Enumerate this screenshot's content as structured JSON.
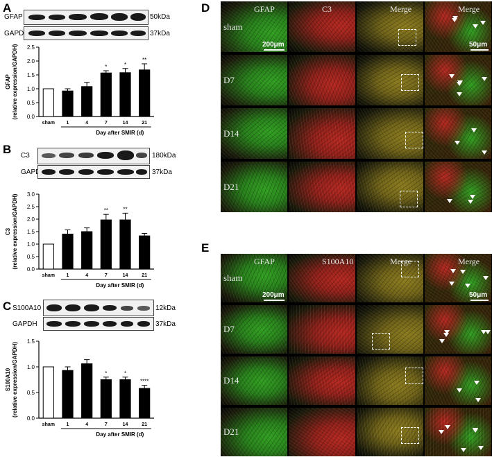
{
  "panels": {
    "A": "A",
    "B": "B",
    "C": "C",
    "D": "D",
    "E": "E"
  },
  "blots": {
    "A": {
      "protein": "GFAP",
      "protein_mw": "50kDa",
      "loading": "GAPDH",
      "loading_mw": "37kDa"
    },
    "B": {
      "protein": "C3",
      "protein_mw": "180kDa",
      "loading": "GAPDH",
      "loading_mw": "37kDa"
    },
    "C": {
      "protein": "S100A10",
      "protein_mw": "12kDa",
      "loading": "GAPDH",
      "loading_mw": "37kDa"
    }
  },
  "chart_data": [
    {
      "type": "bar",
      "panel": "A",
      "categories": [
        "sham",
        "1",
        "4",
        "7",
        "14",
        "21"
      ],
      "values": [
        1.0,
        0.92,
        1.08,
        1.57,
        1.58,
        1.68
      ],
      "errors": [
        0,
        0.08,
        0.15,
        0.08,
        0.15,
        0.22
      ],
      "significance": [
        "",
        "",
        "",
        "*",
        "*",
        "**"
      ],
      "ylabel_line1": "GFAP",
      "ylabel_line2": "(relative expression/GAPDH)",
      "xlabel": "Day after SMIR (d)",
      "ylim": [
        0,
        2.5
      ],
      "yticks": [
        "0.0",
        "0.5",
        "1.0",
        "1.5",
        "2.0",
        "2.5"
      ],
      "bar_colors": {
        "sham": "#ffffff",
        "other": "#000000"
      }
    },
    {
      "type": "bar",
      "panel": "B",
      "categories": [
        "sham",
        "1",
        "4",
        "7",
        "14",
        "21"
      ],
      "values": [
        1.0,
        1.4,
        1.5,
        1.97,
        1.97,
        1.33
      ],
      "errors": [
        0,
        0.17,
        0.15,
        0.22,
        0.27,
        0.1
      ],
      "significance": [
        "",
        "",
        "",
        "**",
        "**",
        ""
      ],
      "ylabel_line1": "C3",
      "ylabel_line2": "(relative expression/GAPDH)",
      "xlabel": "Day after SMIR (d)",
      "ylim": [
        0,
        3.0
      ],
      "yticks": [
        "0.0",
        "0.5",
        "1.0",
        "1.5",
        "2.0",
        "2.5",
        "3.0"
      ],
      "bar_colors": {
        "sham": "#ffffff",
        "other": "#000000"
      }
    },
    {
      "type": "bar",
      "panel": "C",
      "categories": [
        "sham",
        "1",
        "4",
        "7",
        "14",
        "21"
      ],
      "values": [
        1.0,
        0.93,
        1.06,
        0.75,
        0.75,
        0.58
      ],
      "errors": [
        0,
        0.07,
        0.08,
        0.05,
        0.05,
        0.06
      ],
      "significance": [
        "",
        "",
        "",
        "*",
        "*",
        "****"
      ],
      "ylabel_line1": "S100A10",
      "ylabel_line2": "(relative expression/GAPDH)",
      "xlabel": "Day after SMIR (d)",
      "ylim": [
        0,
        1.5
      ],
      "yticks": [
        "0.0",
        "0.5",
        "1.0",
        "1.5"
      ],
      "bar_colors": {
        "sham": "#ffffff",
        "other": "#000000"
      }
    }
  ],
  "micrographs": {
    "D": {
      "columns": [
        "GFAP",
        "C3",
        "Merge",
        "Merge"
      ],
      "rows": [
        "sham",
        "D7",
        "D14",
        "D21"
      ],
      "scalebar_low": "200μm",
      "scalebar_high": "50μm"
    },
    "E": {
      "columns": [
        "GFAP",
        "S100A10",
        "Merge",
        "Merge"
      ],
      "rows": [
        "sham",
        "D7",
        "D14",
        "D21"
      ],
      "scalebar_low": "200μm",
      "scalebar_high": "50μm"
    }
  },
  "colors": {
    "green_channel": "#2f9e1f",
    "red_channel": "#b3261e",
    "merge_channel": "#8a7a1c"
  }
}
